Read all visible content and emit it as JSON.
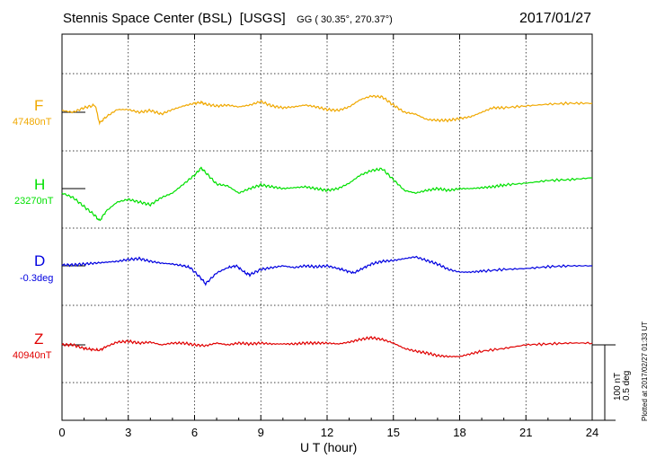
{
  "header": {
    "station": "Stennis Space Center (BSL)",
    "org": "[USGS]",
    "gg": "GG ( 30.35°, 270.37°)",
    "date": "2017/01/27"
  },
  "scale": {
    "nt": "100 nT",
    "deg": "0.5 deg"
  },
  "plotted": "Plotted at 2017/02/27 01:33 UT",
  "chart_data": {
    "type": "line",
    "xlabel": "U T (hour)",
    "xlim": [
      0,
      24
    ],
    "x_ticks": [
      "0",
      "3",
      "6",
      "9",
      "12",
      "15",
      "18",
      "21",
      "24"
    ],
    "grid": true,
    "series": [
      {
        "name": "F",
        "baseline": "47480nT",
        "color": "#f0a800",
        "x": [
          0,
          0.5,
          1.0,
          1.5,
          1.7,
          2.0,
          2.5,
          3.0,
          3.5,
          4.0,
          4.5,
          5.0,
          5.5,
          6.0,
          6.3,
          6.5,
          7.0,
          7.5,
          8.0,
          8.5,
          9.0,
          9.5,
          10.0,
          10.5,
          11.0,
          11.5,
          12.0,
          12.5,
          13.0,
          13.5,
          14.0,
          14.5,
          15.0,
          15.5,
          16.0,
          16.5,
          17.0,
          17.5,
          18.0,
          18.5,
          19.0,
          19.5,
          20.0,
          21.0,
          22.0,
          23.0,
          24.0
        ],
        "y": [
          2,
          0,
          5,
          8,
          -12,
          -5,
          3,
          3,
          0,
          2,
          -2,
          3,
          7,
          10,
          11,
          9,
          7,
          8,
          6,
          8,
          12,
          7,
          5,
          6,
          8,
          6,
          3,
          2,
          6,
          14,
          18,
          17,
          8,
          0,
          -2,
          -8,
          -9,
          -9,
          -7,
          -5,
          0,
          5,
          5,
          7,
          9,
          10,
          10
        ]
      },
      {
        "name": "H",
        "baseline": "23270nT",
        "color": "#00e000",
        "x": [
          0,
          0.5,
          1.0,
          1.5,
          1.7,
          2.0,
          2.5,
          3.0,
          3.5,
          4.0,
          4.5,
          5.0,
          5.5,
          6.0,
          6.3,
          6.5,
          7.0,
          7.5,
          8.0,
          8.5,
          9.0,
          9.5,
          10.0,
          10.5,
          11.0,
          11.5,
          12.0,
          12.5,
          13.0,
          13.5,
          14.0,
          14.5,
          15.0,
          15.5,
          16.0,
          16.5,
          17.0,
          17.5,
          18.0,
          18.5,
          19.0,
          19.5,
          20.0,
          21.0,
          22.0,
          23.0,
          24.0
        ],
        "y": [
          -5,
          -10,
          -20,
          -30,
          -36,
          -25,
          -15,
          -12,
          -15,
          -18,
          -10,
          -5,
          5,
          15,
          23,
          18,
          5,
          3,
          -5,
          0,
          4,
          2,
          0,
          1,
          2,
          0,
          -2,
          0,
          6,
          15,
          20,
          22,
          10,
          -2,
          -5,
          -2,
          0,
          -2,
          0,
          0,
          1,
          2,
          4,
          6,
          9,
          10,
          12
        ]
      },
      {
        "name": "D",
        "baseline": "-0.3deg",
        "color": "#0000e0",
        "x": [
          0,
          0.5,
          1.0,
          1.5,
          2.0,
          2.5,
          3.0,
          3.5,
          4.0,
          4.5,
          5.0,
          5.5,
          5.8,
          6.3,
          6.5,
          7.0,
          7.5,
          7.9,
          8.3,
          8.5,
          9.0,
          9.5,
          10.0,
          10.5,
          11.0,
          11.5,
          12.0,
          12.5,
          12.8,
          13.2,
          13.6,
          14.0,
          14.5,
          15.0,
          15.5,
          16.0,
          16.5,
          17.0,
          17.5,
          18.0,
          18.5,
          19.0,
          20.0,
          21.0,
          22.0,
          23.0,
          24.0
        ],
        "y": [
          1,
          1,
          2,
          3,
          4,
          5,
          7,
          8,
          5,
          3,
          2,
          0,
          -2,
          -14,
          -20,
          -8,
          -2,
          0,
          -8,
          -10,
          -4,
          -2,
          0,
          -2,
          0,
          -1,
          0,
          -3,
          -5,
          -8,
          -3,
          2,
          5,
          6,
          8,
          10,
          6,
          2,
          -4,
          -7,
          -7,
          -6,
          -4,
          -3,
          -1,
          0,
          0
        ]
      },
      {
        "name": "Z",
        "baseline": "40940nT",
        "color": "#e00000",
        "x": [
          0,
          0.5,
          1.0,
          1.3,
          1.7,
          2.0,
          2.5,
          3.0,
          3.5,
          4.0,
          4.5,
          5.0,
          5.5,
          6.0,
          6.5,
          7.0,
          7.5,
          8.0,
          8.5,
          9.0,
          9.5,
          10.0,
          10.5,
          11.0,
          11.5,
          12.0,
          12.5,
          13.0,
          13.5,
          14.0,
          14.5,
          15.0,
          15.5,
          16.0,
          16.5,
          17.0,
          17.5,
          18.0,
          18.5,
          19.0,
          20.0,
          21.0,
          22.0,
          23.0,
          24.0
        ],
        "y": [
          0,
          0,
          -4,
          -5,
          -6,
          -2,
          3,
          4,
          2,
          3,
          0,
          2,
          2,
          0,
          -1,
          2,
          0,
          2,
          1,
          2,
          1,
          1,
          1,
          2,
          2,
          2,
          1,
          3,
          6,
          8,
          6,
          2,
          -4,
          -7,
          -9,
          -12,
          -13,
          -13,
          -10,
          -7,
          -4,
          0,
          1,
          2,
          2
        ]
      }
    ]
  }
}
